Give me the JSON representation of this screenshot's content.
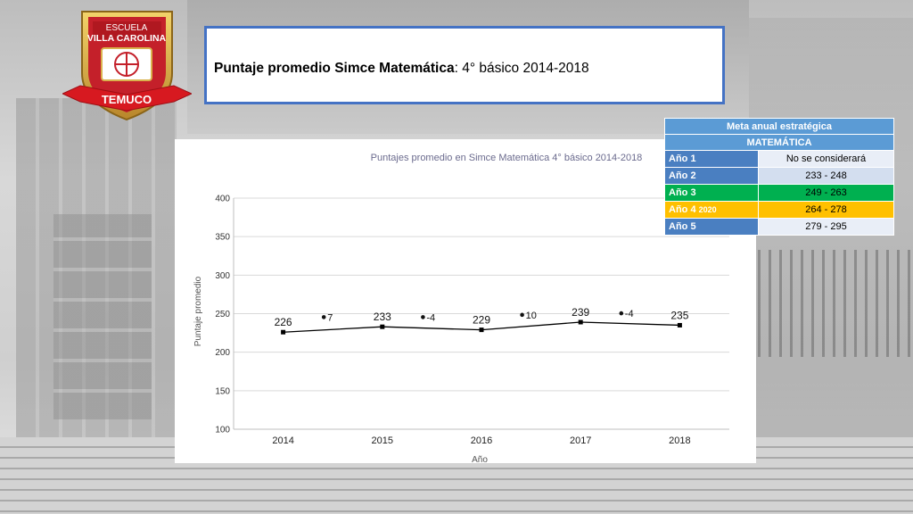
{
  "logo": {
    "line1": "ESCUELA",
    "line2": "VILLA CAROLINA",
    "ribbon": "TEMUCO"
  },
  "title": {
    "bold": "Puntaje promedio Simce Matemática",
    "rest": ": 4° básico 2014-2018"
  },
  "goals_table": {
    "header1": "Meta anual estratégica",
    "header2": "MATEMÁTICA",
    "rows": [
      {
        "label": "Año 1",
        "suffix": "",
        "value": "No se considerará",
        "label_color": "#4a7fc1",
        "value_color": "#e9eef7"
      },
      {
        "label": "Año 2",
        "suffix": "",
        "value": "233 - 248",
        "label_color": "#4a7fc1",
        "value_color": "#d3deef"
      },
      {
        "label": "Año 3",
        "suffix": "",
        "value": "249 - 263",
        "label_color": "#00b050",
        "value_color": "#00b050"
      },
      {
        "label": "Año 4",
        "suffix": "2020",
        "value": "264 - 278",
        "label_color": "#ffc000",
        "value_color": "#ffc000"
      },
      {
        "label": "Año 5",
        "suffix": "",
        "value": "279 - 295",
        "label_color": "#4a7fc1",
        "value_color": "#e9eef7"
      }
    ]
  },
  "chart_data": {
    "type": "line",
    "title": "Puntajes promedio en Simce Matemática 4° básico 2014-2018",
    "xlabel": "Año",
    "ylabel": "Puntaje promedio",
    "categories": [
      "2014",
      "2015",
      "2016",
      "2017",
      "2018"
    ],
    "series": [
      {
        "values": [
          226,
          233,
          229,
          239,
          235
        ]
      }
    ],
    "ylim": [
      100,
      400
    ],
    "yticks": [
      100,
      150,
      200,
      250,
      300,
      350,
      400
    ],
    "grid": true,
    "differences": [
      {
        "between": [
          "2014",
          "2015"
        ],
        "label": "7",
        "value": 242
      },
      {
        "between": [
          "2015",
          "2016"
        ],
        "label": "-4",
        "value": 242
      },
      {
        "between": [
          "2016",
          "2017"
        ],
        "label": "10",
        "value": 245
      },
      {
        "between": [
          "2017",
          "2018"
        ],
        "label": "-4",
        "value": 247
      }
    ],
    "colors": {
      "line": "#000000",
      "grid": "#d9d9d9",
      "title": "#6b6b8e"
    }
  }
}
